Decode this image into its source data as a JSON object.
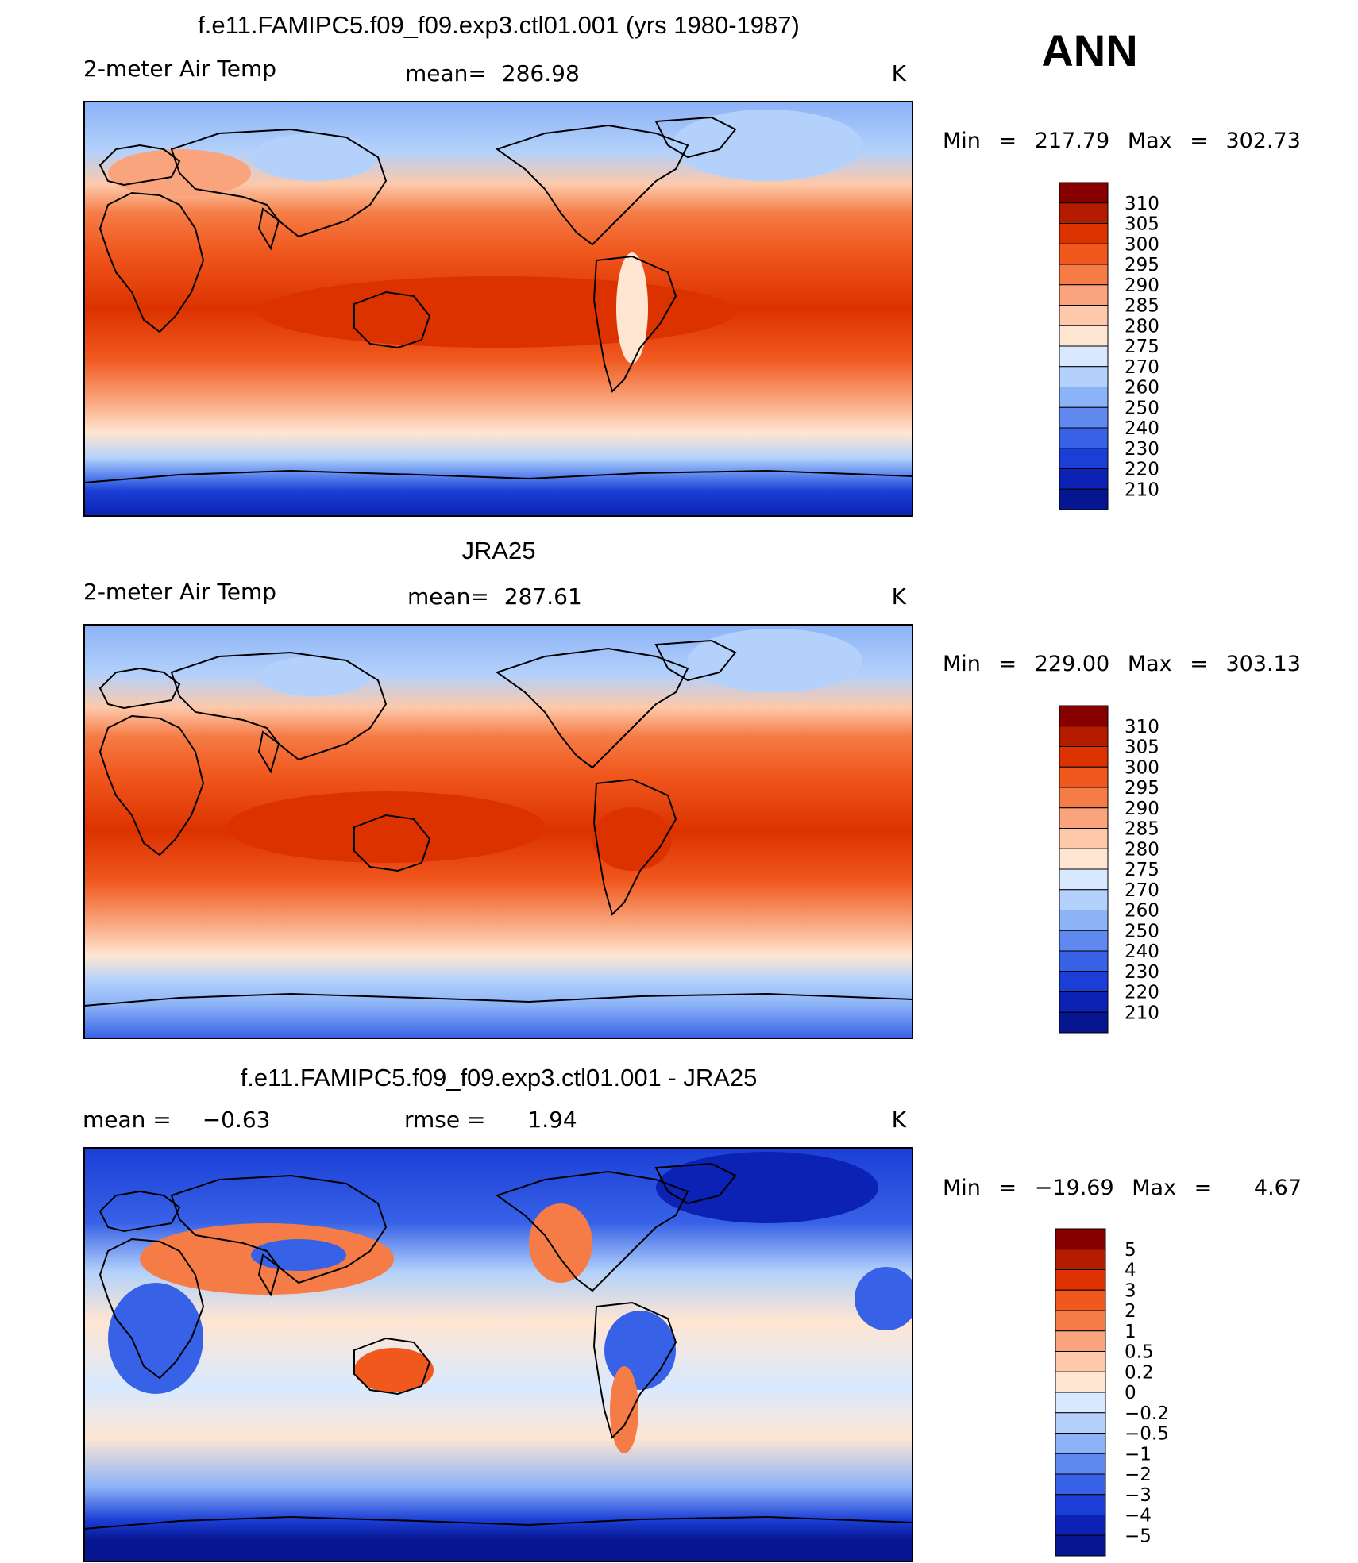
{
  "season": "ANN",
  "units": "K",
  "chart_data": [
    {
      "type": "heatmap",
      "title": "f.e11.FAMIPC5.f09_f09.exp3.ctl01.001 (yrs 1980-1987)",
      "variable": "2-meter Air Temp",
      "mean_label": "mean=",
      "mean_value": "286.98",
      "units": "K",
      "min_label": "Min",
      "max_label": "Max",
      "min": "217.79",
      "max": "302.73",
      "colorbar_levels": [
        "310",
        "305",
        "300",
        "295",
        "290",
        "285",
        "280",
        "275",
        "270",
        "260",
        "250",
        "240",
        "230",
        "220",
        "210"
      ],
      "colors": [
        "#870000",
        "#b41c00",
        "#dc3200",
        "#f0581e",
        "#f57c46",
        "#f9a47c",
        "#fdc9aa",
        "#ffe6d2",
        "#d8e9ff",
        "#b3d1fb",
        "#8cb2f7",
        "#5f89ee",
        "#3761e6",
        "#1b3fd6",
        "#0b22b5",
        "#061590"
      ]
    },
    {
      "type": "heatmap",
      "title": "JRA25",
      "variable": "2-meter Air Temp",
      "mean_label": "mean=",
      "mean_value": "287.61",
      "units": "K",
      "min_label": "Min",
      "max_label": "Max",
      "min": "229.00",
      "max": "303.13",
      "colorbar_levels": [
        "310",
        "305",
        "300",
        "295",
        "290",
        "285",
        "280",
        "275",
        "270",
        "260",
        "250",
        "240",
        "230",
        "220",
        "210"
      ],
      "colors": [
        "#870000",
        "#b41c00",
        "#dc3200",
        "#f0581e",
        "#f57c46",
        "#f9a47c",
        "#fdc9aa",
        "#ffe6d2",
        "#d8e9ff",
        "#b3d1fb",
        "#8cb2f7",
        "#5f89ee",
        "#3761e6",
        "#1b3fd6",
        "#0b22b5",
        "#061590"
      ]
    },
    {
      "type": "heatmap",
      "title": "f.e11.FAMIPC5.f09_f09.exp3.ctl01.001 - JRA25",
      "mean_label": "mean =",
      "mean_value": "−0.63",
      "rmse_label": "rmse =",
      "rmse_value": "1.94",
      "units": "K",
      "min_label": "Min",
      "max_label": "Max",
      "min": "−19.69",
      "max": "4.67",
      "colorbar_levels": [
        "5",
        "4",
        "3",
        "2",
        "1",
        "0.5",
        "0.2",
        "0",
        "−0.2",
        "−0.5",
        "−1",
        "−2",
        "−3",
        "−4",
        "−5"
      ],
      "colors": [
        "#870000",
        "#b41c00",
        "#dc3200",
        "#f0581e",
        "#f57c46",
        "#f9a47c",
        "#fdc9aa",
        "#ffe6d2",
        "#d8e9ff",
        "#b3d1fb",
        "#8cb2f7",
        "#5f89ee",
        "#3761e6",
        "#1b3fd6",
        "#0b22b5",
        "#061590"
      ]
    }
  ]
}
